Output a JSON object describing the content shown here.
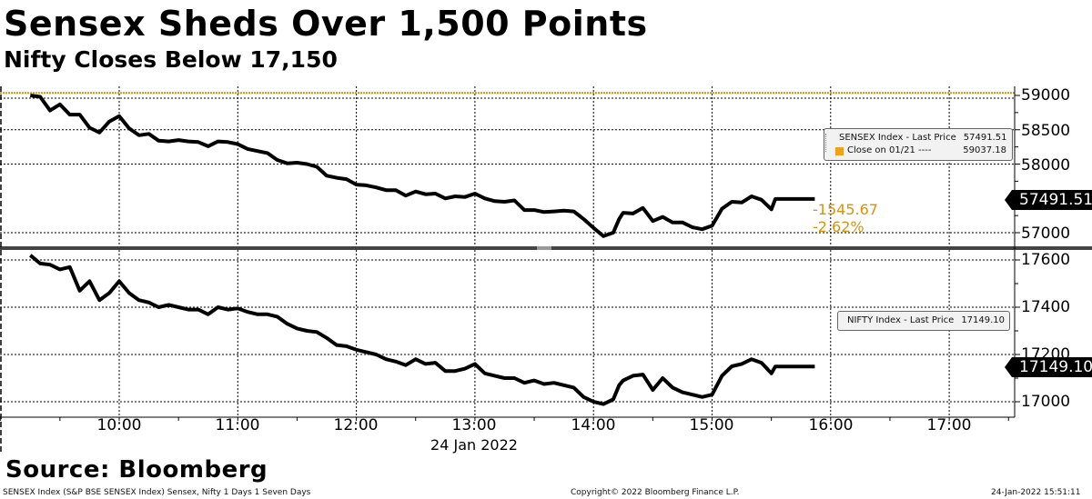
{
  "header": {
    "title": "Sensex Sheds Over 1,500 Points",
    "subtitle": "Nifty Closes Below 17,150"
  },
  "colors": {
    "line": "#000000",
    "prev_close": "#d4940e",
    "grid": "#000000",
    "divider": "#444444",
    "legend_bg": "#f2f2f2"
  },
  "top_panel": {
    "y_ticks": [
      "59000",
      "58500",
      "58000",
      "57000"
    ],
    "last_price_tag": "57491.51",
    "change_abs": "-1545.67",
    "change_pct": "-2.62%",
    "legend": {
      "rows": [
        {
          "label": "SENSEX Index - Last Price",
          "value": "57491.51",
          "color": "#000000"
        },
        {
          "label": "Close on 01/21 ----",
          "value": "59037.18",
          "color": "#f0a020"
        }
      ]
    }
  },
  "bottom_panel": {
    "y_ticks": [
      "17600",
      "17400",
      "17200",
      "17000"
    ],
    "last_price_tag": "17149.10",
    "legend": {
      "rows": [
        {
          "label": "NIFTY Index - Last Price",
          "value": "17149.10",
          "color": "#000000"
        }
      ]
    }
  },
  "x_axis": {
    "ticks": [
      "10:00",
      "11:00",
      "12:00",
      "13:00",
      "14:00",
      "15:00",
      "16:00",
      "17:00"
    ],
    "date_label": "24 Jan 2022"
  },
  "footer": {
    "source": "Source: Bloomberg",
    "description": "SENSEX Index (S&P BSE SENSEX Index) Sensex, Nifty 1 Days 1 Seven Days",
    "copyright": "Copyright© 2022 Bloomberg Finance L.P.",
    "timestamp": "24-Jan-2022 15:51:11"
  },
  "chart_data": [
    {
      "type": "line",
      "title": "Sensex Sheds Over 1,500 Points",
      "xlabel": "24 Jan 2022",
      "ylabel": "",
      "ylim": [
        56800,
        59100
      ],
      "x_ticks": [
        "10:00",
        "11:00",
        "12:00",
        "13:00",
        "14:00",
        "15:00",
        "16:00",
        "17:00"
      ],
      "y_ticks": [
        57000,
        58000,
        58500,
        59000
      ],
      "grid": true,
      "legend_position": "upper right",
      "series": [
        {
          "name": "SENSEX Index - Last Price",
          "last": 57491.51,
          "x": [
            "09:15",
            "09:20",
            "09:25",
            "09:30",
            "09:35",
            "09:40",
            "09:45",
            "09:50",
            "09:55",
            "10:00",
            "10:05",
            "10:10",
            "10:15",
            "10:20",
            "10:25",
            "10:30",
            "10:35",
            "10:40",
            "10:45",
            "10:50",
            "10:55",
            "11:00",
            "11:05",
            "11:10",
            "11:15",
            "11:20",
            "11:25",
            "11:30",
            "11:35",
            "11:40",
            "11:45",
            "11:50",
            "11:55",
            "12:00",
            "12:05",
            "12:10",
            "12:15",
            "12:20",
            "12:25",
            "12:30",
            "12:35",
            "12:40",
            "12:45",
            "12:50",
            "12:55",
            "13:00",
            "13:05",
            "13:10",
            "13:15",
            "13:20",
            "13:25",
            "13:30",
            "13:35",
            "13:40",
            "13:45",
            "13:50",
            "13:55",
            "14:00",
            "14:05",
            "14:10",
            "14:13",
            "14:15",
            "14:20",
            "14:25",
            "14:30",
            "14:35",
            "14:40",
            "14:45",
            "14:50",
            "14:55",
            "15:00",
            "15:05",
            "15:10",
            "15:15",
            "15:20",
            "15:25",
            "15:30",
            "15:32",
            "15:52"
          ],
          "values": [
            59000,
            58980,
            58780,
            58870,
            58720,
            58720,
            58530,
            58460,
            58620,
            58700,
            58520,
            58420,
            58440,
            58340,
            58330,
            58350,
            58330,
            58320,
            58260,
            58330,
            58320,
            58290,
            58220,
            58190,
            58160,
            58060,
            58010,
            58020,
            58000,
            57960,
            57830,
            57800,
            57780,
            57700,
            57690,
            57660,
            57620,
            57620,
            57540,
            57600,
            57560,
            57570,
            57500,
            57530,
            57520,
            57570,
            57500,
            57460,
            57450,
            57470,
            57330,
            57330,
            57300,
            57310,
            57320,
            57310,
            57200,
            57070,
            56950,
            57000,
            57200,
            57290,
            57280,
            57360,
            57170,
            57230,
            57150,
            57150,
            57080,
            57050,
            57100,
            57350,
            57450,
            57440,
            57530,
            57480,
            57340,
            57491.51,
            57491.51
          ]
        },
        {
          "name": "Close on 01/21",
          "constant": 59037.18
        }
      ],
      "annotations": [
        "-1545.67",
        "-2.62%"
      ]
    },
    {
      "type": "line",
      "title": "Nifty Closes Below 17,150",
      "xlabel": "24 Jan 2022",
      "ylabel": "",
      "ylim": [
        16950,
        17650
      ],
      "x_ticks": [
        "10:00",
        "11:00",
        "12:00",
        "13:00",
        "14:00",
        "15:00",
        "16:00",
        "17:00"
      ],
      "y_ticks": [
        17000,
        17200,
        17400,
        17600
      ],
      "grid": true,
      "legend_position": "middle right",
      "series": [
        {
          "name": "NIFTY Index - Last Price",
          "last": 17149.1,
          "x": [
            "09:15",
            "09:20",
            "09:25",
            "09:30",
            "09:35",
            "09:40",
            "09:45",
            "09:50",
            "09:55",
            "10:00",
            "10:05",
            "10:10",
            "10:15",
            "10:20",
            "10:25",
            "10:30",
            "10:35",
            "10:40",
            "10:45",
            "10:50",
            "10:55",
            "11:00",
            "11:05",
            "11:10",
            "11:15",
            "11:20",
            "11:25",
            "11:30",
            "11:35",
            "11:40",
            "11:45",
            "11:50",
            "11:55",
            "12:00",
            "12:05",
            "12:10",
            "12:15",
            "12:20",
            "12:25",
            "12:30",
            "12:35",
            "12:40",
            "12:45",
            "12:50",
            "12:55",
            "13:00",
            "13:05",
            "13:10",
            "13:15",
            "13:20",
            "13:25",
            "13:30",
            "13:35",
            "13:40",
            "13:45",
            "13:50",
            "13:55",
            "14:00",
            "14:05",
            "14:10",
            "14:13",
            "14:15",
            "14:20",
            "14:25",
            "14:30",
            "14:35",
            "14:40",
            "14:45",
            "14:50",
            "14:55",
            "15:00",
            "15:05",
            "15:10",
            "15:15",
            "15:20",
            "15:25",
            "15:30",
            "15:32",
            "15:52"
          ],
          "values": [
            17620,
            17585,
            17580,
            17560,
            17570,
            17470,
            17510,
            17430,
            17460,
            17510,
            17460,
            17430,
            17420,
            17400,
            17410,
            17400,
            17390,
            17390,
            17370,
            17400,
            17390,
            17395,
            17380,
            17370,
            17370,
            17360,
            17330,
            17310,
            17300,
            17295,
            17270,
            17240,
            17235,
            17220,
            17210,
            17200,
            17180,
            17170,
            17155,
            17180,
            17160,
            17165,
            17130,
            17130,
            17140,
            17160,
            17120,
            17110,
            17100,
            17100,
            17080,
            17090,
            17075,
            17080,
            17070,
            17060,
            17020,
            17000,
            16990,
            17010,
            17070,
            17090,
            17110,
            17115,
            17050,
            17100,
            17060,
            17040,
            17030,
            17020,
            17030,
            17110,
            17150,
            17160,
            17180,
            17165,
            17120,
            17149.1,
            17149.1
          ]
        }
      ]
    }
  ]
}
